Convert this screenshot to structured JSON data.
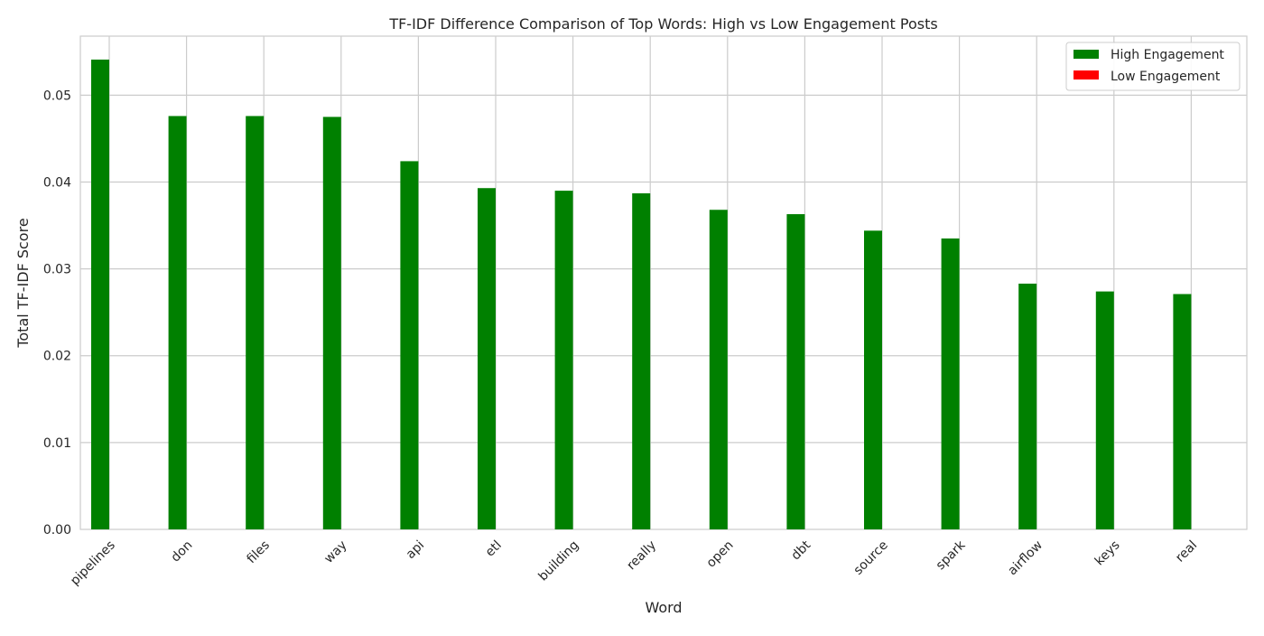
{
  "chart_data": {
    "type": "bar",
    "title": "TF-IDF Difference Comparison of Top Words: High vs Low Engagement Posts",
    "xlabel": "Word",
    "ylabel": "Total TF-IDF Score",
    "categories": [
      "pipelines",
      "don",
      "files",
      "way",
      "api",
      "etl",
      "building",
      "really",
      "open",
      "dbt",
      "source",
      "spark",
      "airflow",
      "keys",
      "real"
    ],
    "series": [
      {
        "name": "High Engagement",
        "color": "#008000",
        "values": [
          0.0541,
          0.0476,
          0.0476,
          0.0475,
          0.0424,
          0.0393,
          0.039,
          0.0387,
          0.0368,
          0.0363,
          0.0344,
          0.0335,
          0.0283,
          0.0274,
          0.0271
        ]
      },
      {
        "name": "Low Engagement",
        "color": "#ff0000",
        "values": [
          0,
          0,
          0,
          0,
          0,
          0,
          0,
          0,
          0,
          0,
          0,
          0,
          0,
          0,
          0
        ]
      }
    ],
    "ylim": [
      0,
      0.0568
    ],
    "yticks": [
      "0.00",
      "0.01",
      "0.02",
      "0.03",
      "0.04",
      "0.05"
    ],
    "grid": true,
    "legend_position": "top-right"
  }
}
